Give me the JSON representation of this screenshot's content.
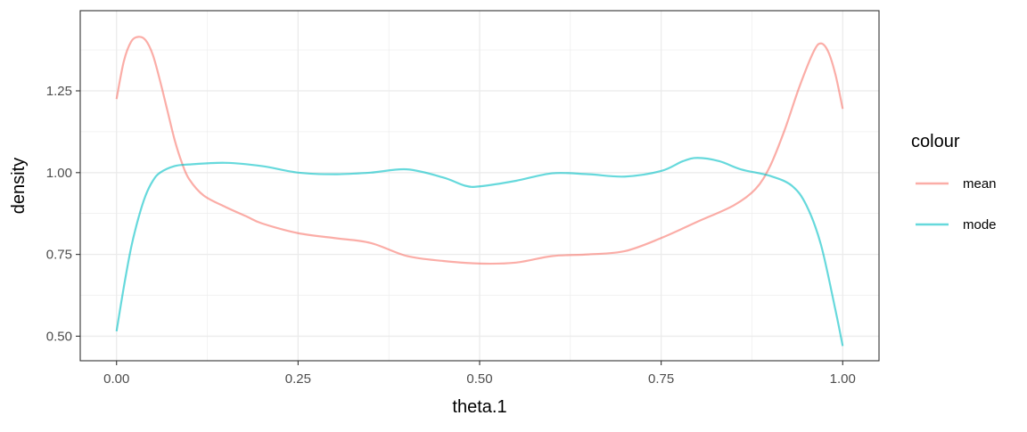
{
  "chart_data": {
    "type": "line",
    "title": "",
    "xlabel": "theta.1",
    "ylabel": "density",
    "xlim": [
      -0.05,
      1.05
    ],
    "ylim": [
      0.425,
      1.495
    ],
    "x_ticks": [
      0.0,
      0.25,
      0.5,
      0.75,
      1.0
    ],
    "x_tick_labels": [
      "0.00",
      "0.25",
      "0.50",
      "0.75",
      "1.00"
    ],
    "y_ticks": [
      0.5,
      0.75,
      1.0,
      1.25
    ],
    "y_tick_labels": [
      "0.50",
      "0.75",
      "1.00",
      "1.25"
    ],
    "grid": true,
    "legend": {
      "title": "colour",
      "position": "right"
    },
    "series": [
      {
        "name": "mean",
        "color": "#F8766D",
        "points": [
          [
            0.0,
            1.225
          ],
          [
            0.01,
            1.34
          ],
          [
            0.02,
            1.4
          ],
          [
            0.03,
            1.415
          ],
          [
            0.04,
            1.405
          ],
          [
            0.05,
            1.36
          ],
          [
            0.06,
            1.28
          ],
          [
            0.07,
            1.19
          ],
          [
            0.08,
            1.1
          ],
          [
            0.09,
            1.03
          ],
          [
            0.1,
            0.98
          ],
          [
            0.12,
            0.93
          ],
          [
            0.15,
            0.895
          ],
          [
            0.18,
            0.865
          ],
          [
            0.2,
            0.845
          ],
          [
            0.25,
            0.815
          ],
          [
            0.3,
            0.8
          ],
          [
            0.35,
            0.785
          ],
          [
            0.4,
            0.745
          ],
          [
            0.45,
            0.73
          ],
          [
            0.5,
            0.722
          ],
          [
            0.55,
            0.725
          ],
          [
            0.6,
            0.745
          ],
          [
            0.65,
            0.75
          ],
          [
            0.7,
            0.76
          ],
          [
            0.75,
            0.8
          ],
          [
            0.8,
            0.85
          ],
          [
            0.85,
            0.9
          ],
          [
            0.88,
            0.95
          ],
          [
            0.9,
            1.02
          ],
          [
            0.92,
            1.13
          ],
          [
            0.94,
            1.26
          ],
          [
            0.96,
            1.37
          ],
          [
            0.97,
            1.395
          ],
          [
            0.98,
            1.37
          ],
          [
            0.99,
            1.3
          ],
          [
            1.0,
            1.195
          ]
        ]
      },
      {
        "name": "mode",
        "color": "#00BFC4",
        "points": [
          [
            0.0,
            0.515
          ],
          [
            0.01,
            0.65
          ],
          [
            0.02,
            0.77
          ],
          [
            0.03,
            0.86
          ],
          [
            0.04,
            0.93
          ],
          [
            0.05,
            0.975
          ],
          [
            0.06,
            1.0
          ],
          [
            0.08,
            1.02
          ],
          [
            0.1,
            1.025
          ],
          [
            0.15,
            1.03
          ],
          [
            0.2,
            1.02
          ],
          [
            0.25,
            1.0
          ],
          [
            0.3,
            0.995
          ],
          [
            0.35,
            1.0
          ],
          [
            0.4,
            1.01
          ],
          [
            0.45,
            0.985
          ],
          [
            0.48,
            0.96
          ],
          [
            0.5,
            0.958
          ],
          [
            0.55,
            0.975
          ],
          [
            0.6,
            0.998
          ],
          [
            0.65,
            0.995
          ],
          [
            0.7,
            0.988
          ],
          [
            0.75,
            1.005
          ],
          [
            0.78,
            1.035
          ],
          [
            0.8,
            1.045
          ],
          [
            0.83,
            1.035
          ],
          [
            0.86,
            1.01
          ],
          [
            0.9,
            0.99
          ],
          [
            0.93,
            0.96
          ],
          [
            0.95,
            0.9
          ],
          [
            0.97,
            0.78
          ],
          [
            0.99,
            0.58
          ],
          [
            1.0,
            0.47
          ]
        ]
      }
    ]
  }
}
